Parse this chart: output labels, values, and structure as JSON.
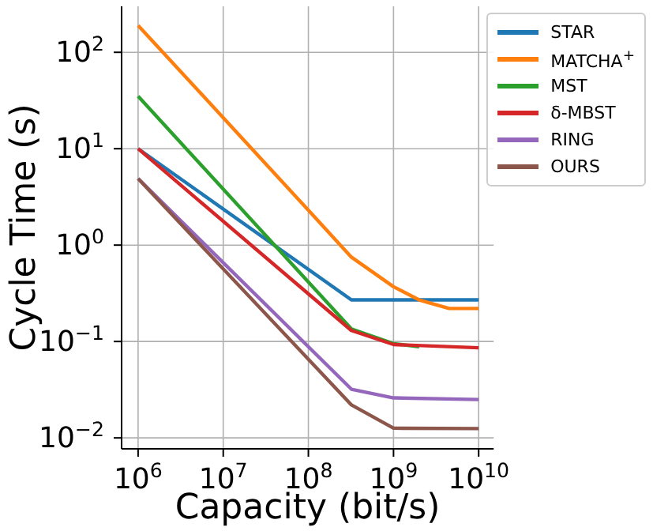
{
  "chart_data": {
    "type": "line",
    "xlabel": "Capacity (bit/s)",
    "ylabel": "Cycle Time (s)",
    "log": "xy",
    "grid": true,
    "legend": "top right",
    "marker": "none",
    "line_style": "solid",
    "xlim": [
      640000,
      15000000000
    ],
    "ylim": [
      0.0077,
      300
    ],
    "xticks": [
      {
        "value": 1000000,
        "label": "10$^{6}$"
      },
      {
        "value": 10000000,
        "label": "10$^{7}$"
      },
      {
        "value": 100000000,
        "label": "10$^{8}$"
      },
      {
        "value": 1000000000,
        "label": "10$^{9}$"
      },
      {
        "value": 10000000000,
        "label": "10$^{10}$"
      }
    ],
    "yticks": [
      {
        "value": 0.01,
        "label": "10$^{−2}$"
      },
      {
        "value": 0.1,
        "label": "10$^{−1}$"
      },
      {
        "value": 1,
        "label": "10$^{0}$"
      },
      {
        "value": 10,
        "label": "10$^{1}$"
      },
      {
        "value": 100,
        "label": "10$^{2}$"
      }
    ],
    "series": [
      {
        "name": "STAR",
        "color": "#1f77b4",
        "x": [
          1000000,
          320000000,
          10000000000
        ],
        "values": [
          10,
          0.27,
          0.27
        ]
      },
      {
        "name": "MATCHA$^{+}$",
        "color": "#ff7f0e",
        "x": [
          1000000,
          10000000,
          100000000,
          320000000,
          1000000000,
          2000000000,
          4500000000,
          10000000000
        ],
        "values": [
          190,
          21,
          2.3,
          0.75,
          0.37,
          0.27,
          0.22,
          0.22
        ]
      },
      {
        "name": "MST",
        "color": "#2ca02c",
        "x": [
          1000000,
          320000000,
          1000000000,
          2000000000
        ],
        "values": [
          35,
          0.135,
          0.095,
          0.088
        ]
      },
      {
        "name": "δ-MBST",
        "color": "#d62728",
        "x": [
          1000000,
          320000000,
          1000000000,
          10000000000
        ],
        "values": [
          10,
          0.13,
          0.093,
          0.086
        ]
      },
      {
        "name": "RING",
        "color": "#9467bd",
        "x": [
          1000000,
          320000000,
          1000000000,
          10000000000
        ],
        "values": [
          4.9,
          0.032,
          0.026,
          0.025
        ]
      },
      {
        "name": "OURS",
        "color": "#8c564b",
        "x": [
          1000000,
          320000000,
          1000000000,
          10000000000
        ],
        "values": [
          4.9,
          0.022,
          0.0126,
          0.0125
        ]
      }
    ]
  }
}
